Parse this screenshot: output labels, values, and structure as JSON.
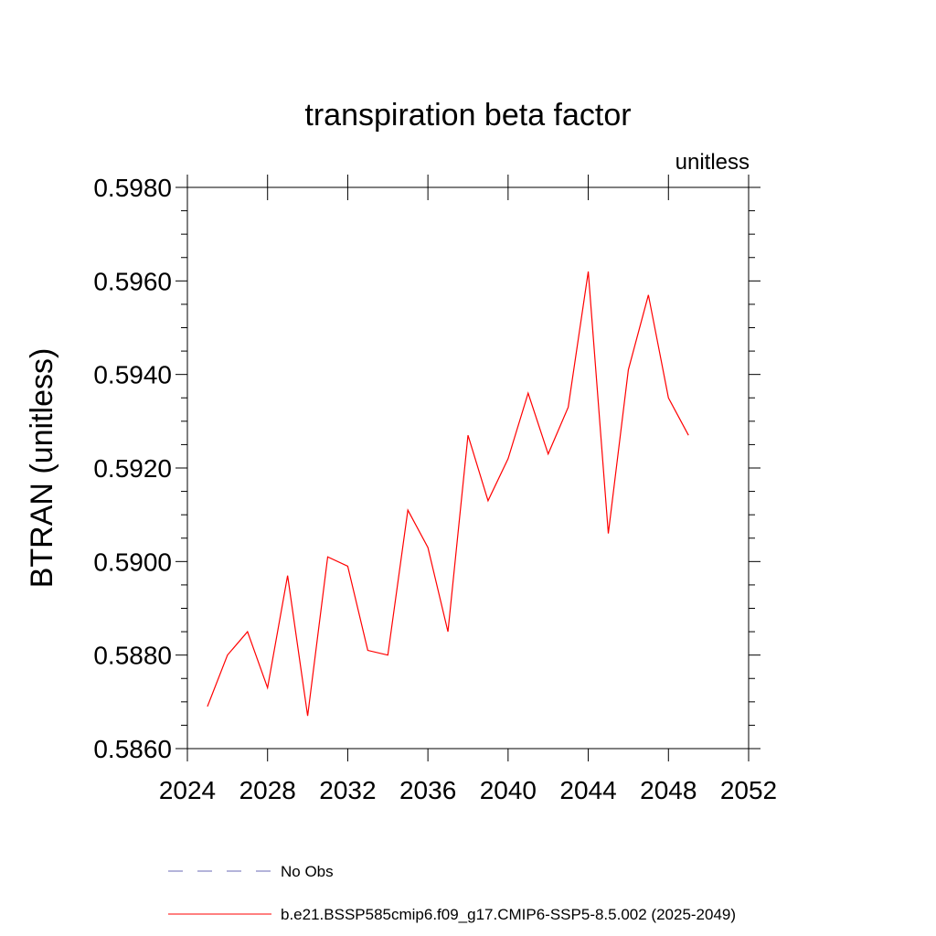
{
  "chart_data": {
    "type": "line",
    "title": "transpiration beta factor",
    "units_label": "unitless",
    "ylabel": "BTRAN  (unitless)",
    "xlabel": "",
    "xlim": [
      2024,
      2052
    ],
    "ylim": [
      0.586,
      0.598
    ],
    "x_ticks": [
      2024,
      2028,
      2032,
      2036,
      2040,
      2044,
      2048,
      2052
    ],
    "x_tick_labels": [
      "2024",
      "2028",
      "2032",
      "2036",
      "2040",
      "2044",
      "2048",
      "2052"
    ],
    "y_ticks": [
      0.586,
      0.588,
      0.59,
      0.592,
      0.594,
      0.596,
      0.598
    ],
    "y_tick_labels": [
      "0.5860",
      "0.5880",
      "0.5900",
      "0.5920",
      "0.5940",
      "0.5960",
      "0.5980"
    ],
    "grid": false,
    "series": [
      {
        "name": "b.e21.BSSP585cmip6.f09_g17.CMIP6-SSP5-8.5.002 (2025-2049)",
        "color": "#ff0000",
        "x": [
          2025,
          2026,
          2027,
          2028,
          2029,
          2030,
          2031,
          2032,
          2033,
          2034,
          2035,
          2036,
          2037,
          2038,
          2039,
          2040,
          2041,
          2042,
          2043,
          2044,
          2045,
          2046,
          2047,
          2048,
          2049
        ],
        "values": [
          0.5869,
          0.588,
          0.5885,
          0.5873,
          0.5897,
          0.5867,
          0.5901,
          0.5899,
          0.5881,
          0.588,
          0.5911,
          0.5903,
          0.5885,
          0.5927,
          0.5913,
          0.5922,
          0.5936,
          0.5923,
          0.5933,
          0.5962,
          0.5906,
          0.5941,
          0.5957,
          0.5935,
          0.5927
        ]
      }
    ],
    "legend": {
      "placement": "bottom",
      "entries": [
        {
          "label": "No Obs",
          "color": "#6a6ab4",
          "style": "dashed"
        },
        {
          "label": "b.e21.BSSP585cmip6.f09_g17.CMIP6-SSP5-8.5.002 (2025-2049)",
          "color": "#ff0000",
          "style": "solid"
        }
      ]
    }
  }
}
